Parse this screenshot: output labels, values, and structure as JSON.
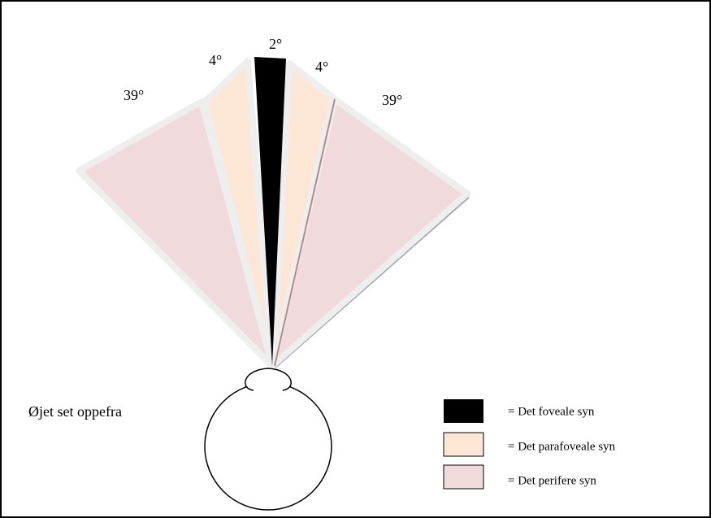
{
  "angles": {
    "fovea": "2°",
    "para_left": "4°",
    "para_right": "4°",
    "peri_left": "39°",
    "peri_right": "39°"
  },
  "eye_label": "Øjet set oppefra",
  "legend": [
    {
      "label": "= Det foveale syn"
    },
    {
      "label": "= Det parafoveale syn"
    },
    {
      "label": "= Det perifere syn"
    }
  ]
}
